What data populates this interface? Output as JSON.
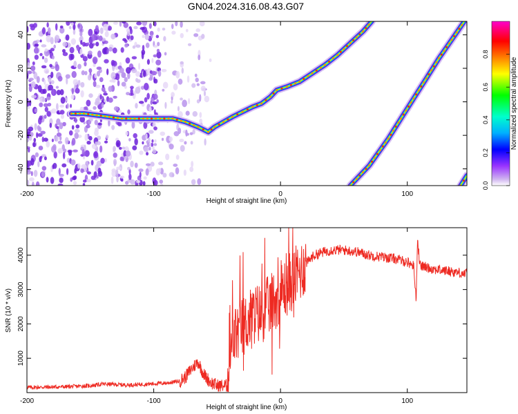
{
  "title": "GN04.2024.316.08.43.G07",
  "colors": {
    "snr_line": "#ee2a22",
    "colormap": [
      "#ffffff",
      "#cfb3f0",
      "#9933ff",
      "#0000ff",
      "#00b0ff",
      "#00ffcc",
      "#00ff00",
      "#ffff00",
      "#ff8000",
      "#ff0000",
      "#ff00cc"
    ]
  },
  "chart_data": [
    {
      "type": "heatmap",
      "name": "spectrogram",
      "xlabel": "Height of straight line (km)",
      "ylabel": "Frequency (Hz)",
      "xlim": [
        -200,
        147
      ],
      "ylim": [
        -50,
        48
      ],
      "x_ticks": [
        -200,
        -100,
        0,
        100
      ],
      "y_ticks": [
        -40,
        -20,
        0,
        20,
        40
      ],
      "colorbar": {
        "label": "Normalized spectral amplitude",
        "range": [
          0,
          1
        ],
        "ticks": [
          "0.0",
          "0.2",
          "0.4",
          "0.6",
          "0.8"
        ]
      },
      "traces": [
        {
          "name": "main",
          "points": [
            [
              -165,
              -7
            ],
            [
              -155,
              -7
            ],
            [
              -145,
              -8
            ],
            [
              -135,
              -9
            ],
            [
              -125,
              -10
            ],
            [
              -115,
              -10
            ],
            [
              -105,
              -10
            ],
            [
              -95,
              -10
            ],
            [
              -85,
              -10
            ],
            [
              -75,
              -12
            ],
            [
              -65,
              -15
            ],
            [
              -57,
              -18
            ],
            [
              -52,
              -15
            ],
            [
              -45,
              -12
            ],
            [
              -38,
              -9
            ],
            [
              -30,
              -6
            ],
            [
              -22,
              -3
            ],
            [
              -15,
              -1
            ],
            [
              -8,
              3
            ],
            [
              -3,
              7
            ],
            [
              5,
              9
            ],
            [
              15,
              12
            ],
            [
              25,
              17
            ],
            [
              35,
              22
            ],
            [
              45,
              28
            ],
            [
              55,
              35
            ],
            [
              65,
              42
            ],
            [
              72,
              48
            ]
          ]
        },
        {
          "name": "secondary",
          "points": [
            [
              55,
              -50
            ],
            [
              70,
              -38
            ],
            [
              85,
              -22
            ],
            [
              95,
              -10
            ],
            [
              105,
              2
            ],
            [
              115,
              14
            ],
            [
              125,
              26
            ],
            [
              135,
              37
            ],
            [
              145,
              48
            ]
          ]
        },
        {
          "name": "corner",
          "points": [
            [
              142,
              -50
            ],
            [
              147,
              -44
            ]
          ]
        }
      ]
    },
    {
      "type": "line",
      "name": "snr",
      "xlabel": "Height of straight line (km)",
      "ylabel": "SNR (10 * v/v)",
      "xlim": [
        -200,
        147
      ],
      "ylim": [
        0,
        4800
      ],
      "x_ticks": [
        -200,
        -100,
        0,
        100
      ],
      "y_ticks": [
        1000,
        2000,
        3000,
        4000
      ],
      "x": [
        -200,
        -170,
        -150,
        -140,
        -120,
        -100,
        -90,
        -80,
        -75,
        -70,
        -65,
        -62,
        -60,
        -55,
        -50,
        -42,
        -40,
        -38,
        -35,
        -30,
        -25,
        -20,
        -15,
        -10,
        -5,
        0,
        5,
        10,
        15,
        20,
        25,
        30,
        40,
        50,
        60,
        70,
        80,
        90,
        100,
        105,
        107,
        108,
        110,
        115,
        120,
        130,
        140,
        147
      ],
      "y": [
        150,
        170,
        200,
        250,
        220,
        260,
        280,
        330,
        450,
        700,
        900,
        650,
        500,
        300,
        200,
        200,
        800,
        1500,
        1700,
        1900,
        2100,
        2300,
        2300,
        2500,
        2700,
        2900,
        3100,
        3300,
        3500,
        3750,
        3950,
        4050,
        4150,
        4150,
        4100,
        4000,
        3950,
        3900,
        3800,
        3700,
        2700,
        4500,
        3700,
        3650,
        3600,
        3550,
        3500,
        3450
      ]
    }
  ]
}
